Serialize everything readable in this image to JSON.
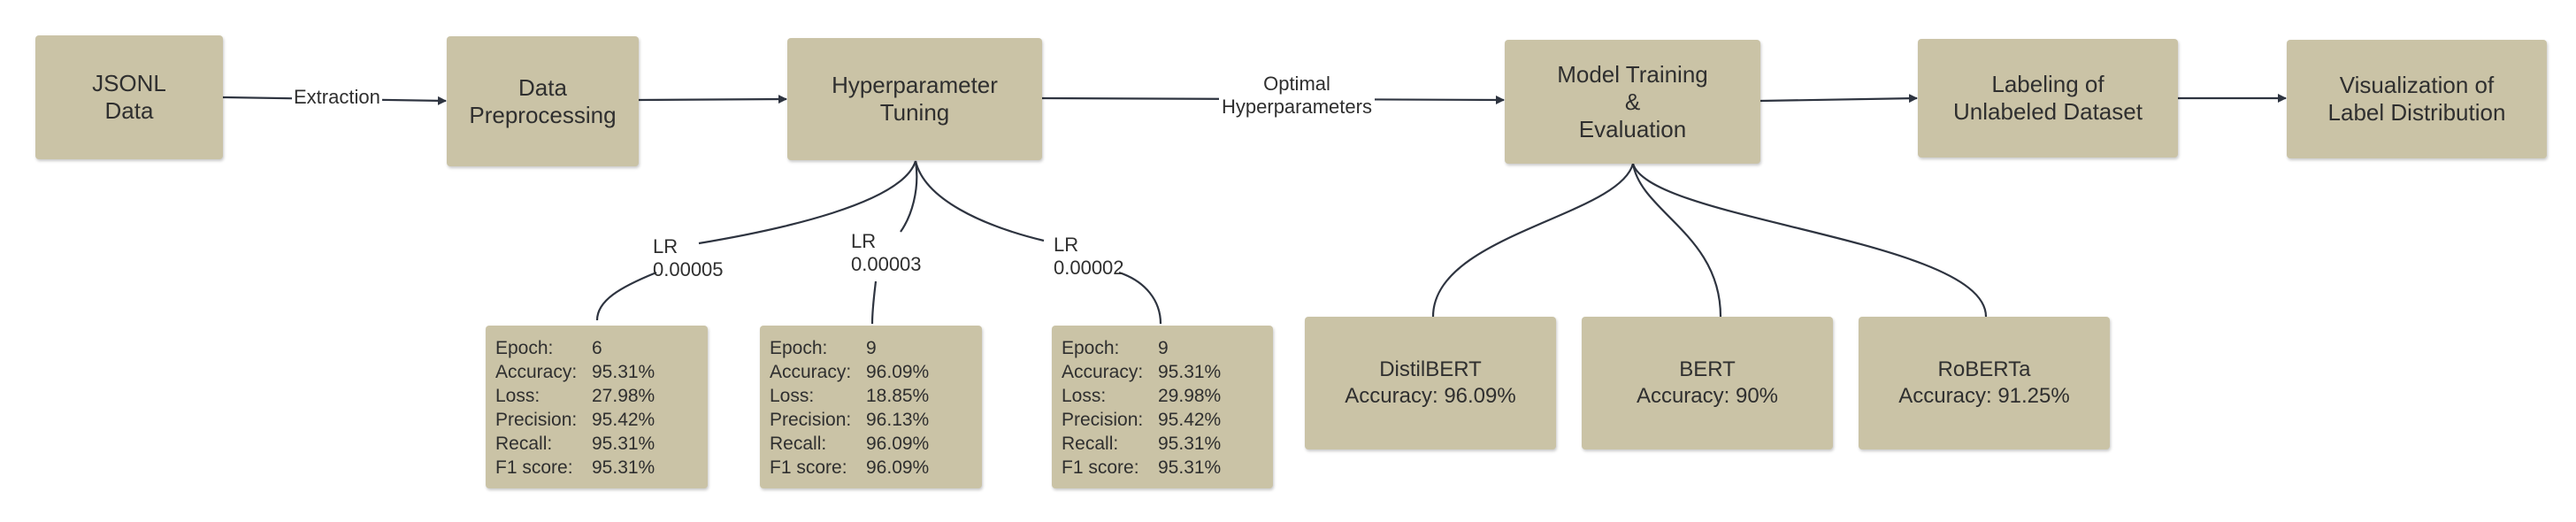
{
  "flow": {
    "jsonl": [
      "JSONL",
      "Data"
    ],
    "preprocess": [
      "Data",
      "Preprocessing"
    ],
    "tuning": [
      "Hyperparameter",
      "Tuning"
    ],
    "training": [
      "Model Training",
      "&",
      "Evaluation"
    ],
    "labeling": [
      "Labeling of",
      "Unlabeled Dataset"
    ],
    "visualization": [
      "Visualization of",
      "Label Distribution"
    ]
  },
  "edge_labels": {
    "extraction": "Extraction",
    "optimal": [
      "Optimal",
      "Hyperparameters"
    ]
  },
  "runs": [
    {
      "lr_label": "LR",
      "lr_value": "0.00005",
      "metrics": [
        {
          "label": "Epoch:",
          "value": "6"
        },
        {
          "label": "Accuracy:",
          "value": "95.31%"
        },
        {
          "label": "Loss:",
          "value": "27.98%"
        },
        {
          "label": "Precision:",
          "value": "95.42%"
        },
        {
          "label": "Recall:",
          "value": "95.31%"
        },
        {
          "label": "F1 score:",
          "value": "95.31%"
        }
      ]
    },
    {
      "lr_label": "LR",
      "lr_value": "0.00003",
      "metrics": [
        {
          "label": "Epoch:",
          "value": "9"
        },
        {
          "label": "Accuracy:",
          "value": "96.09%"
        },
        {
          "label": "Loss:",
          "value": "18.85%"
        },
        {
          "label": "Precision:",
          "value": "96.13%"
        },
        {
          "label": "Recall:",
          "value": "96.09%"
        },
        {
          "label": "F1 score:",
          "value": "96.09%"
        }
      ]
    },
    {
      "lr_label": "LR",
      "lr_value": "0.00002",
      "metrics": [
        {
          "label": "Epoch:",
          "value": "9"
        },
        {
          "label": "Accuracy:",
          "value": "95.31%"
        },
        {
          "label": "Loss:",
          "value": "29.98%"
        },
        {
          "label": "Precision:",
          "value": "95.42%"
        },
        {
          "label": "Recall:",
          "value": "95.31%"
        },
        {
          "label": "F1 score:",
          "value": "95.31%"
        }
      ]
    }
  ],
  "models": [
    {
      "name": "DistilBERT",
      "accuracy": "Accuracy: 96.09%"
    },
    {
      "name": "BERT",
      "accuracy": "Accuracy: 90%"
    },
    {
      "name": "RoBERTa",
      "accuracy": "Accuracy: 91.25%"
    }
  ],
  "colors": {
    "box_fill": "#cac3a6",
    "connector": "#2e3440",
    "text": "#2f2f2f"
  }
}
